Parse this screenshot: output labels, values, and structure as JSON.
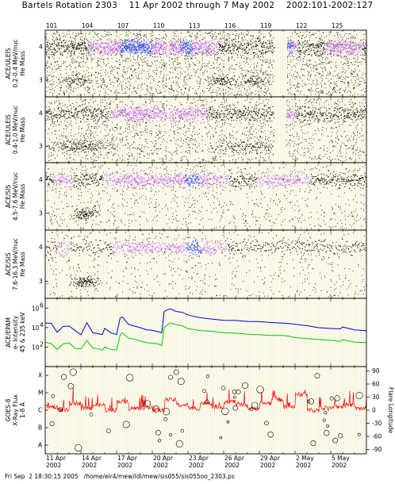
{
  "header": {
    "title": "Bartels Rotation 2303    11 Apr 2002 through 7 May 2002    2002:101-2002:127"
  },
  "footer": {
    "text": "Fri Sep  2 18:30:15 2005   /home/eir4/mew/idl/mew/sis055/sis055oo_2303.ps"
  },
  "chart_data": [
    {
      "type": "scatter",
      "panel": "ACE/ULEIS 0.2-0.4 MeV/nuc",
      "ylabel_lines": [
        "ACE/ULEIS",
        "0.2-0.4 MeV/nuc",
        "He Mass"
      ],
      "yticks": [
        "4",
        "3"
      ],
      "ylim": [
        2.5,
        4.5
      ],
      "xlim": [
        101,
        128
      ],
      "top_doy_labels": [
        "101",
        "104",
        "107",
        "110",
        "113",
        "116",
        "119",
        "122",
        "125"
      ]
    },
    {
      "type": "scatter",
      "panel": "ACE/ULEIS 0.4-1.0 MeV/nuc",
      "ylabel_lines": [
        "ACE/ULEIS",
        "0.4-1.0 MeV/nuc",
        "He Mass"
      ],
      "yticks": [
        "4",
        "3"
      ],
      "ylim": [
        2.5,
        4.5
      ],
      "xlim": [
        101,
        128
      ]
    },
    {
      "type": "scatter",
      "panel": "ACE/SIS 4.5-7.6 MeV/nuc",
      "ylabel_lines": [
        "ACE/SIS",
        "4.5-7.6 MeV/nuc",
        "He Mass"
      ],
      "yticks": [
        "4",
        "3"
      ],
      "ylim": [
        2.5,
        4.5
      ],
      "xlim": [
        101,
        128
      ]
    },
    {
      "type": "scatter",
      "panel": "ACE/SIS 7.6-16.3 MeV/nuc",
      "ylabel_lines": [
        "ACE/SIS",
        "7.6-16.3 MeV/nuc",
        "He Mass"
      ],
      "yticks": [
        "4",
        "3"
      ],
      "ylim": [
        2.5,
        4.5
      ],
      "xlim": [
        101,
        128
      ]
    },
    {
      "type": "line",
      "panel": "ACE/EPAM",
      "ylabel_lines": [
        "ACE/EPAM",
        "e- Intensity",
        "45 & 235 keV"
      ],
      "yticks": [
        "10^6",
        "10^4",
        "10^2"
      ],
      "ylog": true,
      "ylim": [
        1,
        10000000
      ],
      "xlim": [
        101,
        128
      ],
      "series": [
        {
          "color": "#0000dd",
          "x": [
            101.0,
            101.5,
            102.0,
            102.5,
            103.0,
            103.5,
            104.0,
            104.5,
            105.0,
            105.5,
            105.8,
            106.0,
            106.5,
            107.0,
            107.3,
            107.5,
            108.0,
            108.5,
            109.0,
            109.5,
            110.0,
            110.5,
            110.8,
            111.0,
            111.5,
            112.0,
            112.5,
            113.0,
            113.5,
            114.0,
            115.0,
            116.0,
            117.0,
            118.0,
            119.0,
            120.0,
            121.0,
            121.5,
            122.0,
            123.0,
            124.0,
            125.0,
            125.8,
            126.0,
            127.0,
            128.0
          ],
          "y": [
            30000,
            25000,
            3000,
            12000,
            15000,
            5000,
            2000,
            30000,
            3000,
            2500,
            2000,
            8000,
            3000,
            2000,
            100000,
            120000,
            20000,
            15000,
            9000,
            6000,
            5000,
            4000,
            3000,
            500000,
            800000,
            500000,
            400000,
            200000,
            150000,
            100000,
            80000,
            60000,
            50000,
            40000,
            40000,
            30000,
            30000,
            25000,
            20000,
            15000,
            10000,
            8000,
            7000,
            12000,
            6000,
            5000
          ]
        },
        {
          "color": "#00cc00",
          "x": [
            101.0,
            101.5,
            102.0,
            102.5,
            103.0,
            103.5,
            104.0,
            104.5,
            105.0,
            105.5,
            105.8,
            106.0,
            106.5,
            107.0,
            107.3,
            107.5,
            108.0,
            108.5,
            109.0,
            109.5,
            110.0,
            110.5,
            110.8,
            111.0,
            111.5,
            112.0,
            112.5,
            113.0,
            113.5,
            114.0,
            115.0,
            116.0,
            117.0,
            118.0,
            119.0,
            120.0,
            121.0,
            121.5,
            122.0,
            123.0,
            124.0,
            125.0,
            125.8,
            126.0,
            127.0,
            128.0
          ],
          "y": [
            300,
            250,
            60,
            200,
            300,
            80,
            60,
            500,
            80,
            60,
            50,
            100,
            60,
            50,
            2000,
            3000,
            800,
            600,
            400,
            300,
            250,
            200,
            150,
            10000,
            30000,
            20000,
            15000,
            8000,
            6000,
            5000,
            4000,
            3000,
            2500,
            2000,
            2000,
            1500,
            1500,
            1200,
            1000,
            800,
            600,
            500,
            400,
            600,
            350,
            300
          ]
        }
      ]
    },
    {
      "type": "line",
      "panel": "GOES-8 X-Ray Flux 1-8 A",
      "ylabel_lines": [
        "GOES-8",
        "X-Ray Flux",
        "1-8 A"
      ],
      "yticks_left": [
        "X",
        "M",
        "C",
        "B",
        "A"
      ],
      "right_axis_label": "Flare Longitude",
      "yticks_right": [
        "90",
        "60",
        "30",
        "0",
        "-30",
        "-60",
        "-90"
      ],
      "xlim": [
        101,
        128
      ],
      "series": [
        {
          "color": "#ff0000",
          "name": "",
          "x": [
            101,
            102,
            103,
            104,
            105,
            106,
            107,
            108,
            109,
            110,
            111,
            112,
            113,
            114,
            115,
            116,
            117,
            118,
            119,
            120,
            121,
            122,
            123,
            124,
            125,
            126,
            127,
            128
          ],
          "y": [
            3.2,
            3.0,
            3.4,
            3.1,
            3.3,
            3.0,
            3.5,
            3.1,
            3.2,
            3.0,
            3.6,
            3.3,
            3.1,
            3.4,
            3.2,
            3.5,
            3.3,
            3.1,
            3.4,
            3.6,
            3.2,
            3.9,
            3.0,
            3.1,
            3.2,
            3.3,
            3.1,
            3.0
          ]
        }
      ]
    }
  ],
  "x_axis": {
    "date_labels": [
      {
        "day": "11 Apr",
        "year": "2002"
      },
      {
        "day": "14 Apr",
        "year": "2002"
      },
      {
        "day": "17 Apr",
        "year": "2002"
      },
      {
        "day": "20 Apr",
        "year": "2002"
      },
      {
        "day": "23 Apr",
        "year": "2002"
      },
      {
        "day": "26 Apr",
        "year": "2002"
      },
      {
        "day": "29 Apr",
        "year": "2002"
      },
      {
        "day": "2 May",
        "year": "2002"
      },
      {
        "day": "5 May",
        "year": "2002"
      }
    ]
  },
  "colors": {
    "density_low": "#000000",
    "density_mid": "#cc66ff",
    "density_high": "#3344ff",
    "grid_minor": "#e8e3a0",
    "epam_high": "#0000dd",
    "epam_low": "#00cc00",
    "goes_flux": "#ff0000"
  }
}
